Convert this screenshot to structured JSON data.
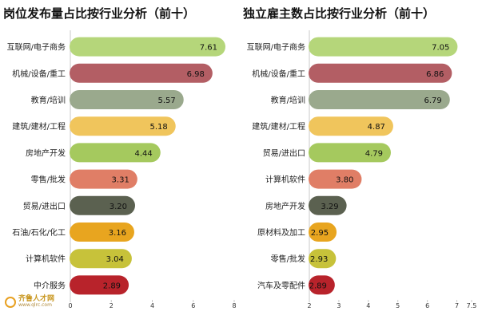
{
  "chart_data": [
    {
      "type": "bar",
      "orientation": "horizontal",
      "title": "岗位发布量占比按行业分析（前十）",
      "categories": [
        "互联网/电子商务",
        "机械/设备/重工",
        "教育/培训",
        "建筑/建材/工程",
        "房地产开发",
        "零售/批发",
        "贸易/进出口",
        "石油/石化/化工",
        "计算机软件",
        "中介服务"
      ],
      "values": [
        7.61,
        6.98,
        5.57,
        5.18,
        4.44,
        3.31,
        3.2,
        3.16,
        3.04,
        2.89
      ],
      "value_labels": [
        "7.61",
        "6.98",
        "5.57",
        "5.18",
        "4.44",
        "3.31",
        "3.20",
        "3.16",
        "3.04",
        "2.89"
      ],
      "colors": [
        "#b5d67a",
        "#b35e64",
        "#9aa98d",
        "#f0c55c",
        "#a5c95e",
        "#e07e66",
        "#5b6150",
        "#e8a51f",
        "#c7c23a",
        "#b8232b"
      ],
      "xlim": [
        0,
        8
      ],
      "xticks": [
        0,
        2,
        4,
        6,
        8
      ],
      "xtick_labels": [
        "0",
        "2",
        "4",
        "6",
        "8"
      ],
      "grid": false
    },
    {
      "type": "bar",
      "orientation": "horizontal",
      "title": "独立雇主数占比按行业分析（前十）",
      "categories": [
        "互联网/电子商务",
        "机械/设备/重工",
        "教育/培训",
        "建筑/建材/工程",
        "贸易/进出口",
        "计算机软件",
        "房地产开发",
        "原材料及加工",
        "零售/批发",
        "汽车及零配件"
      ],
      "values": [
        7.05,
        6.86,
        6.79,
        4.87,
        4.79,
        3.8,
        3.29,
        2.95,
        2.93,
        2.89
      ],
      "value_labels": [
        "7.05",
        "6.86",
        "6.79",
        "4.87",
        "4.79",
        "3.80",
        "3.29",
        "2.95",
        "2.93",
        "2.89"
      ],
      "colors": [
        "#b5d67a",
        "#b35e64",
        "#9aa98d",
        "#f0c55c",
        "#a5c95e",
        "#e07e66",
        "#5b6150",
        "#e8a51f",
        "#c7c23a",
        "#b8232b"
      ],
      "xlim": [
        2,
        7.5
      ],
      "xticks": [
        2,
        3,
        4,
        5,
        6,
        7,
        7.5
      ],
      "xtick_labels": [
        "2",
        "3",
        "4",
        "5",
        "6",
        "7",
        "7.5"
      ],
      "grid": false
    }
  ],
  "watermark": {
    "text": "齐鲁人才网",
    "url": "www.qlrc.com"
  }
}
